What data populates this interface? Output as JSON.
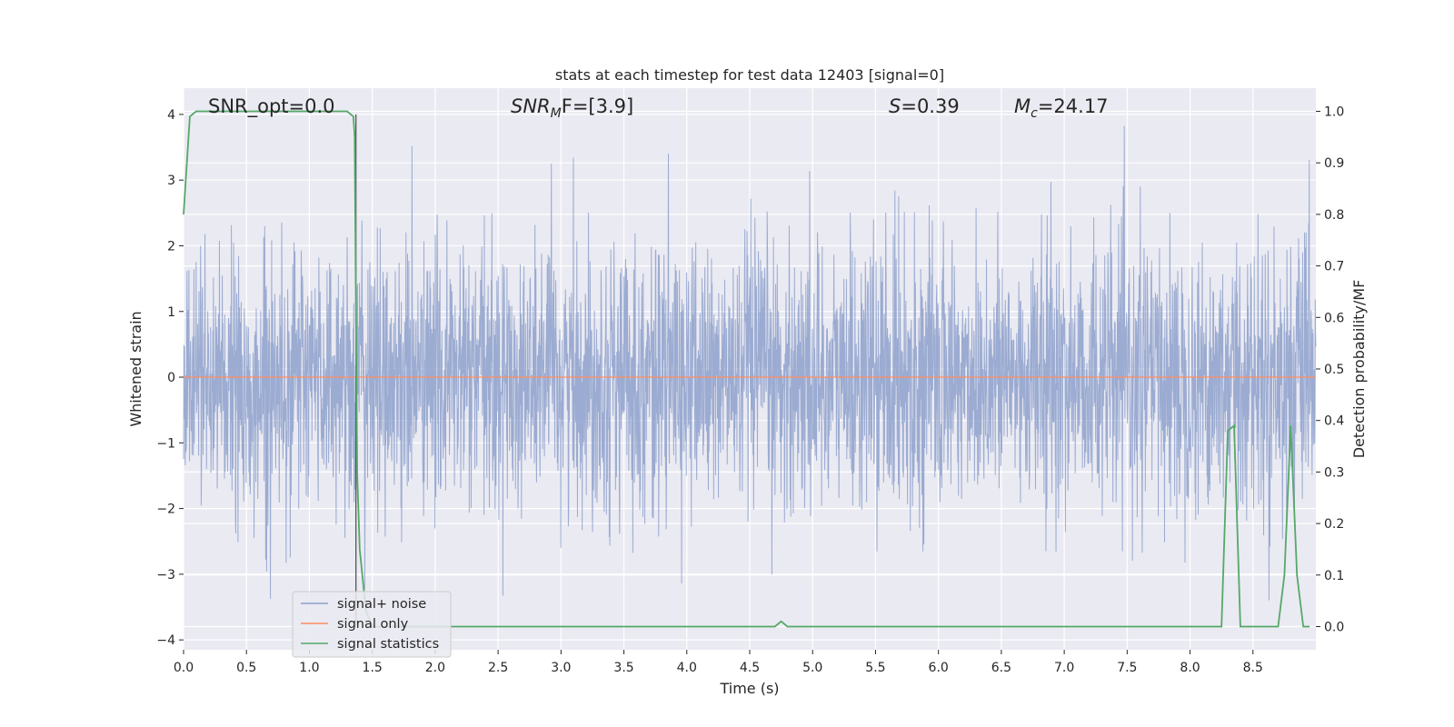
{
  "chart_data": {
    "type": "line",
    "title": "stats at each timestep for test data 12403 [signal=0]",
    "xlabel": "Time (s)",
    "ylabel": "Whitened strain",
    "y2label": "Detection probability/MF",
    "xlim": [
      0.0,
      9.0
    ],
    "ylim": [
      -4.15,
      4.4
    ],
    "y2lim": [
      -0.045,
      1.045
    ],
    "x_ticks": [
      "0.0",
      "0.5",
      "1.0",
      "1.5",
      "2.0",
      "2.5",
      "3.0",
      "3.5",
      "4.0",
      "4.5",
      "5.0",
      "5.5",
      "6.0",
      "6.5",
      "7.0",
      "7.5",
      "8.0",
      "8.5"
    ],
    "y_ticks": [
      "4",
      "3",
      "2",
      "1",
      "0",
      "−1",
      "−2",
      "−3",
      "−4"
    ],
    "y2_ticks": [
      "1.0",
      "0.9",
      "0.8",
      "0.7",
      "0.6",
      "0.5",
      "0.4",
      "0.3",
      "0.2",
      "0.1",
      "0.0"
    ],
    "grid": true,
    "legend_position": "lower-left",
    "annotations": {
      "snr_opt": "SNR_opt=0.0",
      "snr_mf_main": "SNR",
      "snr_mf_sub": "M",
      "snr_mf_tail": "F=[3.9]",
      "s_main": "S",
      "s_tail": "=0.39",
      "mc_main": "M",
      "mc_sub": "c",
      "mc_tail": "=24.17"
    },
    "series": [
      {
        "name": "signal+ noise",
        "color": "#8da0cb",
        "note_values": "gaussian whitened noise, roughly within ±3.5, dense sampling across 0–9 s"
      },
      {
        "name": "signal only",
        "color": "#fc8d62",
        "x": [
          0.0,
          9.0
        ],
        "y": [
          0.0,
          0.0
        ]
      },
      {
        "name": "signal statistics",
        "color": "#55a868",
        "axis": "right",
        "x": [
          0.0,
          0.05,
          0.1,
          0.15,
          1.3,
          1.35,
          1.36,
          1.38,
          1.4,
          1.45,
          1.5,
          2.0,
          4.7,
          4.75,
          4.8,
          4.85,
          8.25,
          8.3,
          8.35,
          8.4,
          8.5,
          8.7,
          8.75,
          8.8,
          8.85,
          8.9,
          8.95
        ],
        "y": [
          0.8,
          0.99,
          1.0,
          1.0,
          1.0,
          0.99,
          0.95,
          0.3,
          0.15,
          0.03,
          0.0,
          0.0,
          0.0,
          0.01,
          0.0,
          0.0,
          0.0,
          0.38,
          0.39,
          0.0,
          0.0,
          0.0,
          0.1,
          0.39,
          0.1,
          0.0,
          0.0
        ]
      }
    ],
    "vertical_marker_x": 1.37
  }
}
